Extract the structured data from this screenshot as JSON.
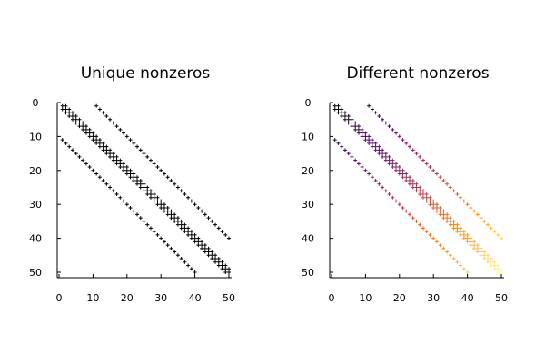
{
  "chart_data": [
    {
      "type": "scatter",
      "title": "Unique nonzeros",
      "matrix_size": 50,
      "diagonal_offsets": [
        -10,
        -1,
        0,
        1,
        10
      ],
      "index_base": 1,
      "coloring": "uniform",
      "marker_color": "#000000",
      "marker": "plus",
      "xlim": [
        0,
        50
      ],
      "ylim": [
        50,
        0
      ],
      "xticks": [
        "0",
        "10",
        "20",
        "30",
        "40",
        "50"
      ],
      "yticks": [
        "0",
        "10",
        "20",
        "30",
        "40",
        "50"
      ],
      "grid": false
    },
    {
      "type": "scatter",
      "title": "Different nonzeros",
      "matrix_size": 50,
      "diagonal_offsets": [
        -10,
        -1,
        0,
        1,
        10
      ],
      "index_base": 1,
      "coloring": "value = row + column",
      "colormap": "inferno",
      "colormap_stops": [
        "#000004",
        "#57106e",
        "#bc3754",
        "#f98e09",
        "#fcffa4"
      ],
      "marker": "plus",
      "xlim": [
        0,
        50
      ],
      "ylim": [
        50,
        0
      ],
      "xticks": [
        "0",
        "10",
        "20",
        "30",
        "40",
        "50"
      ],
      "yticks": [
        "0",
        "10",
        "20",
        "30",
        "40",
        "50"
      ],
      "grid": false
    }
  ]
}
